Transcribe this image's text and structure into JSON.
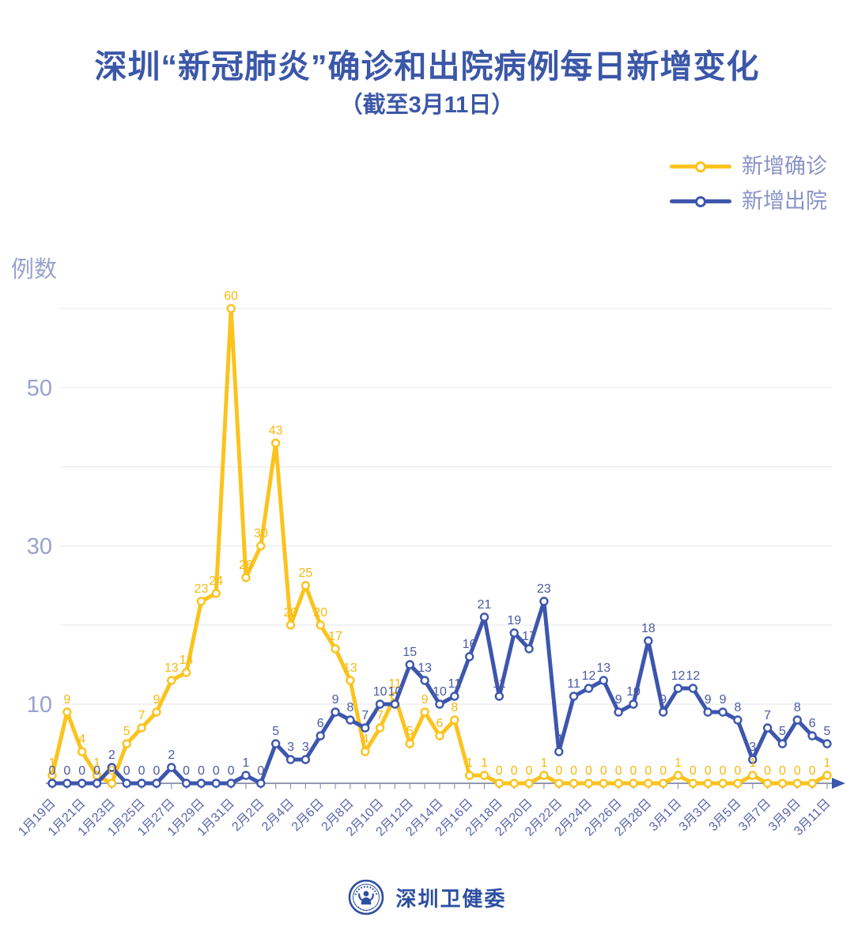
{
  "header": {
    "title": "深圳“新冠肺炎”确诊和出院病例每日新增变化",
    "subtitle": "（截至3月11日）"
  },
  "y_axis_unit": "例数",
  "chart_data": {
    "type": "line",
    "title": "深圳“新冠肺炎”确诊和出院病例每日新增变化",
    "subtitle": "（截至3月11日）",
    "xlabel": "",
    "ylabel": "例数",
    "ylim": [
      0,
      62
    ],
    "y_gridlines": [
      10,
      20,
      30,
      40,
      50,
      60
    ],
    "y_tick_labels": [
      10,
      30,
      50
    ],
    "grid": true,
    "legend_position": "top-right",
    "x_label_interval": 2,
    "x": [
      "1月19日",
      "1月20日",
      "1月21日",
      "1月22日",
      "1月23日",
      "1月24日",
      "1月25日",
      "1月26日",
      "1月27日",
      "1月28日",
      "1月29日",
      "1月30日",
      "1月31日",
      "2月1日",
      "2月2日",
      "2月3日",
      "2月4日",
      "2月5日",
      "2月6日",
      "2月7日",
      "2月8日",
      "2月9日",
      "2月10日",
      "2月11日",
      "2月12日",
      "2月13日",
      "2月14日",
      "2月15日",
      "2月16日",
      "2月17日",
      "2月18日",
      "2月19日",
      "2月20日",
      "2月21日",
      "2月22日",
      "2月23日",
      "2月24日",
      "2月25日",
      "2月26日",
      "2月27日",
      "2月28日",
      "2月29日",
      "3月1日",
      "3月2日",
      "3月3日",
      "3月4日",
      "3月5日",
      "3月6日",
      "3月7日",
      "3月8日",
      "3月9日",
      "3月10日",
      "3月11日"
    ],
    "series": [
      {
        "name": "新增确诊",
        "color": "#FBC31D",
        "label_color": "#F5B90F",
        "values": [
          1,
          9,
          4,
          1,
          0,
          5,
          7,
          9,
          13,
          14,
          23,
          24,
          60,
          26,
          30,
          43,
          20,
          25,
          20,
          17,
          13,
          4,
          7,
          11,
          5,
          9,
          6,
          8,
          1,
          1,
          0,
          0,
          0,
          1,
          0,
          0,
          0,
          0,
          0,
          0,
          0,
          0,
          1,
          0,
          0,
          0,
          0,
          1,
          0,
          0,
          0,
          0,
          1
        ]
      },
      {
        "name": "新增出院",
        "color": "#3D56AD",
        "label_color": "#4A5BA3",
        "values": [
          0,
          0,
          0,
          0,
          2,
          0,
          0,
          0,
          2,
          0,
          0,
          0,
          0,
          1,
          0,
          5,
          3,
          3,
          6,
          9,
          8,
          7,
          10,
          10,
          15,
          13,
          10,
          11,
          16,
          21,
          11,
          19,
          17,
          23,
          4,
          11,
          12,
          13,
          9,
          10,
          18,
          9,
          12,
          12,
          9,
          9,
          8,
          3,
          7,
          5,
          8,
          6,
          5
        ]
      }
    ]
  },
  "colors": {
    "title": "#3B57A8",
    "legend_text": "#8A93C5",
    "y_tick_text": "#99A2CE",
    "x_tick_text": "#5866AC",
    "gridline": "#E9E9EF",
    "axis": "#9199B0",
    "axis_arrow": "#3D56AD",
    "background": "#FFFFFF",
    "footer_brand": "#2D4FA0"
  },
  "footer": {
    "brand": "深圳卫健委"
  }
}
